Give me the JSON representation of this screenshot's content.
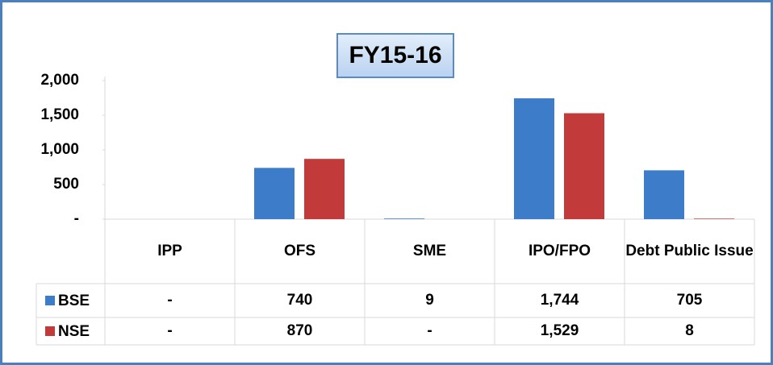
{
  "chart_data": {
    "type": "bar",
    "title": "FY15-16",
    "categories": [
      "IPP",
      "OFS",
      "SME",
      "IPO/FPO",
      "Debt Public Issue"
    ],
    "series": [
      {
        "name": "BSE",
        "color": "#3d7cc9",
        "values": [
          0,
          740,
          9,
          1744,
          705
        ],
        "value_labels": [
          "-",
          "740",
          "9",
          "1,744",
          "705"
        ]
      },
      {
        "name": "NSE",
        "color": "#c23a3a",
        "values": [
          0,
          870,
          0,
          1529,
          8
        ],
        "value_labels": [
          "-",
          "870",
          "-",
          "1,529",
          "8"
        ]
      }
    ],
    "ylim": [
      0,
      2000
    ],
    "yticks": [
      {
        "value": 0,
        "label": "-"
      },
      500,
      {
        "value": 1000,
        "label": "1,000"
      },
      {
        "value": 1500,
        "label": "1,500"
      },
      {
        "value": 2000,
        "label": "2,000"
      }
    ],
    "grid": false
  }
}
